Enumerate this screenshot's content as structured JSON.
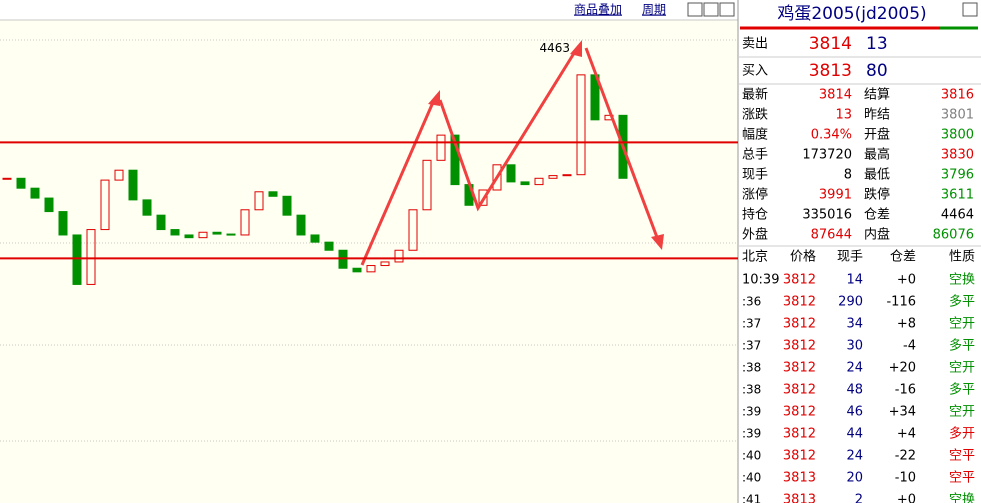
{
  "toolbar": {
    "overlay": "商品叠加",
    "period": "周期"
  },
  "price_chart": {
    "type": "candle",
    "ylim": [
      3953,
      4500
    ],
    "values": [
      4314,
      4303,
      4292,
      4277,
      4251,
      4196,
      4257,
      4312,
      4323,
      4290,
      4273,
      4257,
      4251,
      4248,
      4254,
      4252,
      4251,
      4279,
      4299,
      4294,
      4273,
      4251,
      4243,
      4234,
      4214,
      4210,
      4217,
      4221,
      4234,
      4279,
      4334,
      4362,
      4307,
      4284,
      4301,
      4329,
      4310,
      4307,
      4314,
      4317,
      4318,
      4429,
      4379,
      4384,
      4314
    ],
    "up_color": "#e00000",
    "down_color": "#009000",
    "levels": [
      4354,
      4225
    ],
    "level_color": "#e00000",
    "peak": 4463
  },
  "quote": {
    "title": "鸡蛋2005(jd2005)",
    "book": [
      {
        "label": "卖出",
        "price": 3814,
        "volume": 13
      },
      {
        "label": "买入",
        "price": 3813,
        "volume": 80
      }
    ],
    "fields": [
      [
        {
          "label": "最新",
          "value": 3814,
          "color": "#e00000"
        },
        {
          "label": "结算",
          "value": 3816,
          "color": "#e00000"
        }
      ],
      [
        {
          "label": "涨跌",
          "value": 13,
          "color": "#e00000"
        },
        {
          "label": "昨结",
          "value": 3801,
          "color": "#808080"
        }
      ],
      [
        {
          "label": "幅度",
          "value": "0.34%",
          "color": "#e00000"
        },
        {
          "label": "开盘",
          "value": 3800,
          "color": "#009000"
        }
      ],
      [
        {
          "label": "总手",
          "value": 173720,
          "color": "#000000"
        },
        {
          "label": "最高",
          "value": 3830,
          "color": "#e00000"
        }
      ],
      [
        {
          "label": "现手",
          "value": 8,
          "color": "#000000"
        },
        {
          "label": "最低",
          "value": 3796,
          "color": "#009000"
        }
      ],
      [
        {
          "label": "涨停",
          "value": 3991,
          "color": "#e00000"
        },
        {
          "label": "跌停",
          "value": 3611,
          "color": "#009000"
        }
      ],
      [
        {
          "label": "持仓",
          "value": 335016,
          "color": "#000000"
        },
        {
          "label": "仓差",
          "value": 4464,
          "color": "#000000"
        }
      ],
      [
        {
          "label": "外盘",
          "value": 87644,
          "color": "#e00000"
        },
        {
          "label": "内盘",
          "value": 86076,
          "color": "#009000"
        }
      ]
    ],
    "tick_header": [
      "北京",
      "价格",
      "现手",
      "仓差",
      "性质"
    ],
    "ticks": [
      {
        "time": "10:39",
        "price": 3812,
        "volume": 14,
        "oi": "+0",
        "kind": "空换",
        "color": "#009000"
      },
      {
        "time": ":36",
        "price": 3812,
        "volume": 290,
        "oi": "-116",
        "kind": "多平",
        "color": "#009000"
      },
      {
        "time": ":37",
        "price": 3812,
        "volume": 34,
        "oi": "+8",
        "kind": "空开",
        "color": "#009000"
      },
      {
        "time": ":37",
        "price": 3812,
        "volume": 30,
        "oi": "-4",
        "kind": "多平",
        "color": "#009000"
      },
      {
        "time": ":38",
        "price": 3812,
        "volume": 24,
        "oi": "+20",
        "kind": "空开",
        "color": "#009000"
      },
      {
        "time": ":38",
        "price": 3812,
        "volume": 48,
        "oi": "-16",
        "kind": "多平",
        "color": "#009000"
      },
      {
        "time": ":39",
        "price": 3812,
        "volume": 46,
        "oi": "+34",
        "kind": "空开",
        "color": "#009000"
      },
      {
        "time": ":39",
        "price": 3812,
        "volume": 44,
        "oi": "+4",
        "kind": "多开",
        "color": "#e00000"
      },
      {
        "time": ":40",
        "price": 3812,
        "volume": 24,
        "oi": "-22",
        "kind": "空平",
        "color": "#e00000"
      },
      {
        "time": ":40",
        "price": 3813,
        "volume": 20,
        "oi": "-10",
        "kind": "空平",
        "color": "#e00000"
      },
      {
        "time": ":41",
        "price": 3813,
        "volume": 2,
        "oi": "+0",
        "kind": "空换",
        "color": "#009000"
      }
    ]
  }
}
